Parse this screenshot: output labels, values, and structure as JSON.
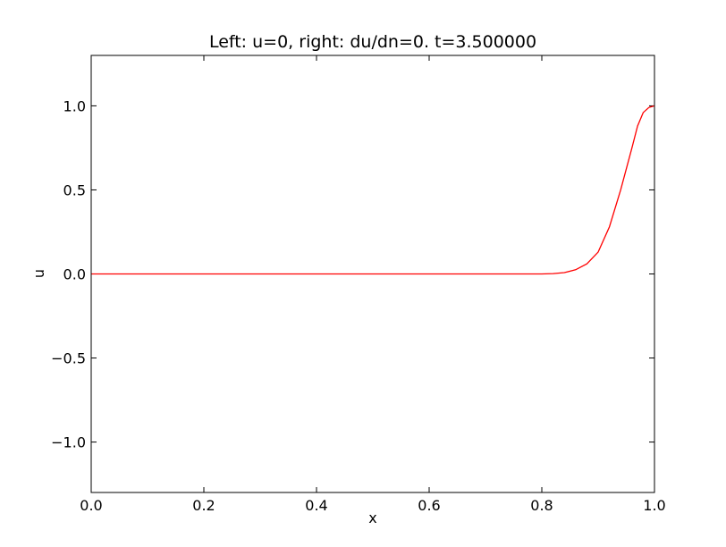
{
  "chart_data": {
    "type": "line",
    "title": "Left: u=0, right: du/dn=0. t=3.500000",
    "xlabel": "x",
    "ylabel": "u",
    "xlim": [
      0.0,
      1.0
    ],
    "ylim": [
      -1.3,
      1.3
    ],
    "grid": false,
    "x_ticks": [
      0.0,
      0.2,
      0.4,
      0.6,
      0.8,
      1.0
    ],
    "x_tick_labels": [
      "0.0",
      "0.2",
      "0.4",
      "0.6",
      "0.8",
      "1.0"
    ],
    "y_ticks": [
      -1.0,
      -0.5,
      0.0,
      0.5,
      1.0
    ],
    "y_tick_labels": [
      "−1.0",
      "−0.5",
      "0.0",
      "0.5",
      "1.0"
    ],
    "series": [
      {
        "color": "#ff0000",
        "x": [
          0.0,
          0.1,
          0.2,
          0.3,
          0.4,
          0.5,
          0.6,
          0.7,
          0.76,
          0.8,
          0.82,
          0.84,
          0.86,
          0.88,
          0.9,
          0.92,
          0.94,
          0.96,
          0.97,
          0.98,
          0.99,
          1.0
        ],
        "y": [
          0.0,
          0.0,
          0.0,
          0.0,
          0.0,
          0.0,
          0.0,
          0.0,
          0.0,
          0.0,
          0.002,
          0.008,
          0.025,
          0.06,
          0.13,
          0.28,
          0.5,
          0.75,
          0.88,
          0.96,
          0.99,
          1.0
        ]
      }
    ]
  }
}
